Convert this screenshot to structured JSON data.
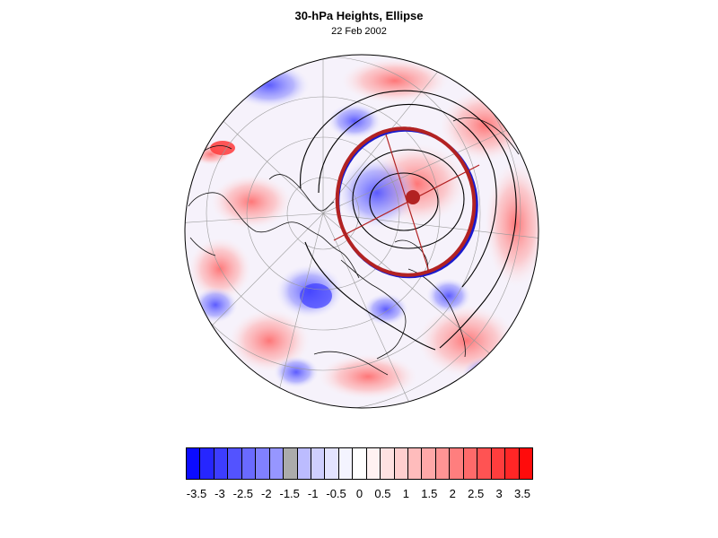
{
  "title": "30-hPa Heights, Ellipse",
  "subtitle": "22 Feb 2002",
  "colorbar": {
    "labels": [
      "-3.5",
      "-3",
      "-2.5",
      "-2",
      "-1.5",
      "-1",
      "-0.5",
      "0",
      "0.5",
      "1",
      "1.5",
      "2",
      "2.5",
      "3",
      "3.5"
    ],
    "colors": [
      "#0b0bff",
      "#2626ff",
      "#3d3dff",
      "#5353ff",
      "#6a6aff",
      "#8080ff",
      "#9696ff",
      "#abababff",
      "#bcbcff",
      "#cfcfff",
      "#e3e3ff",
      "#f4f4ff",
      "#ffffff",
      "#fff2f2",
      "#ffe2e2",
      "#ffcfcf",
      "#ffbcbc",
      "#ffa8a8",
      "#ff9494",
      "#ff7e7e",
      "#ff6a6a",
      "#ff5353",
      "#ff3d3d",
      "#ff2626",
      "#ff0b0b"
    ]
  },
  "colors": {
    "ellipse_outer": "#b22222",
    "ellipse_inner": "#1a1acc",
    "contours": "#000000",
    "grid": "#9a9a9a"
  }
}
